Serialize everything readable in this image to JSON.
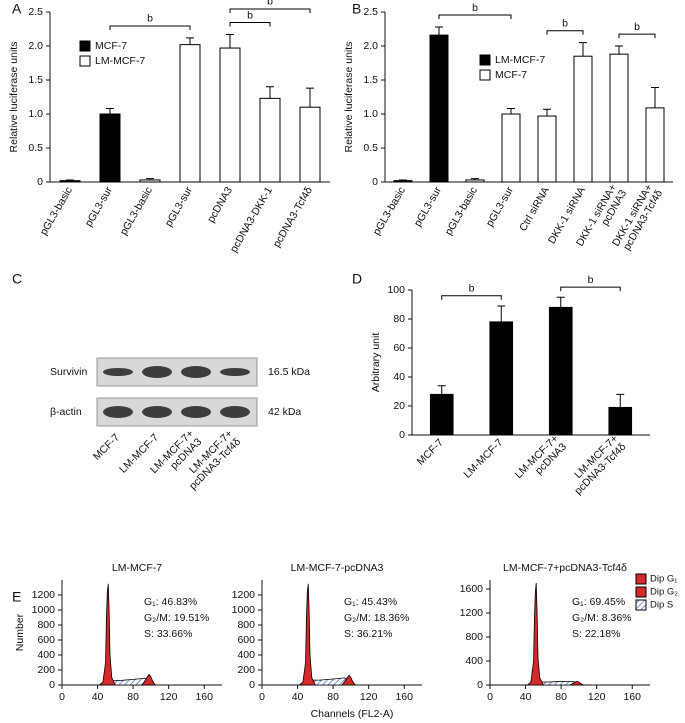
{
  "chart_data": [
    {
      "type": "bar",
      "label": "A",
      "ylabel": "Relative luciferase units",
      "categories": [
        "pGL3-basic",
        "pGL3-sur",
        "pGL3-basic",
        "pGL3-sur",
        "pcDNA3",
        "pcDNA3-DKK-1",
        "pcDNA3-Tcf4δ"
      ],
      "series": [
        {
          "name": "MCF-7",
          "color": "#000000",
          "values": [
            0.02,
            1.0,
            null,
            null,
            null,
            null,
            null
          ],
          "errors": [
            0.01,
            0.08,
            null,
            null,
            null,
            null,
            null
          ]
        },
        {
          "name": "LM-MCF-7",
          "color": "#ffffff",
          "values": [
            null,
            null,
            0.03,
            2.02,
            1.97,
            1.23,
            1.1
          ],
          "errors": [
            null,
            null,
            0.02,
            0.1,
            0.2,
            0.17,
            0.28
          ]
        }
      ],
      "ylim": [
        0,
        2.5
      ],
      "yticks": [
        0,
        0.5,
        {
          "value": 1,
          "label": "1.0"
        },
        1.5,
        {
          "value": 2,
          "label": "2.0"
        },
        2.5
      ],
      "legend": "upper left",
      "brackets": [
        {
          "from": 1,
          "to": 3,
          "label": "b"
        },
        {
          "from": 4,
          "to": 5,
          "label": "b"
        },
        {
          "from": 4,
          "to": 6,
          "label": "b"
        }
      ]
    },
    {
      "type": "bar",
      "label": "B",
      "ylabel": "Relative luciferase units",
      "categories": [
        "pGL3-basic",
        "pGL3-sur",
        "pGL3-basic",
        "pGL3-sur",
        "Ctrl siRNA",
        "DKK-1 siRNA",
        "DKK-1 siRNA+\npcDNA3",
        "DKK-1 siRNA+\npcDNA3-Tcf4δ"
      ],
      "series": [
        {
          "name": "LM-MCF-7",
          "color": "#000000",
          "values": [
            0.02,
            2.16,
            null,
            null,
            null,
            null,
            null,
            null
          ],
          "errors": [
            0.01,
            0.12,
            null,
            null,
            null,
            null,
            null,
            null
          ]
        },
        {
          "name": "MCF-7",
          "color": "#ffffff",
          "values": [
            null,
            null,
            0.03,
            1.0,
            0.97,
            1.85,
            1.88,
            1.09
          ],
          "errors": [
            null,
            null,
            0.02,
            0.08,
            0.1,
            0.2,
            0.12,
            0.3
          ]
        }
      ],
      "ylim": [
        0,
        2.5
      ],
      "yticks": [
        0,
        0.5,
        {
          "value": 1,
          "label": "1.0"
        },
        1.5,
        {
          "value": 2,
          "label": "2.0"
        },
        2.5
      ],
      "legend": "upper center",
      "brackets": [
        {
          "from": 1,
          "to": 3,
          "label": "b"
        },
        {
          "from": 4,
          "to": 5,
          "label": "b"
        },
        {
          "from": 6,
          "to": 7,
          "label": "b"
        }
      ]
    },
    {
      "type": "bar",
      "label": "D",
      "ylabel": "Arbitrary unit",
      "categories": [
        "MCF-7",
        "LM-MCF-7",
        "LM-MCF-7+\npcDNA3",
        "LM-MCF-7+\npcDNA3-Tcf4δ"
      ],
      "series": [
        {
          "color": "#000000",
          "values": [
            28,
            78,
            88,
            19
          ],
          "errors": [
            6,
            11,
            7,
            9
          ]
        }
      ],
      "ylim": [
        0,
        100
      ],
      "yticks": [
        0,
        20,
        40,
        60,
        80,
        100
      ],
      "brackets": [
        {
          "from": 0,
          "to": 1,
          "label": "b"
        },
        {
          "from": 2,
          "to": 3,
          "label": "b"
        }
      ]
    },
    {
      "type": "area",
      "title": "LM-MCF-7",
      "ylabel": "Number",
      "annotations": [
        "G₁: 46.83%",
        "G₂/M: 19.51%",
        "S: 33.66%"
      ],
      "xlim": [
        0,
        180
      ],
      "xticks": [
        0,
        40,
        80,
        120,
        160
      ],
      "ylim": [
        0,
        1400
      ],
      "yticks": [
        0,
        200,
        400,
        600,
        800,
        1000,
        1200
      ],
      "series": [
        {
          "color": "#d42a2a",
          "x": [
            42,
            46,
            49,
            50,
            51,
            52,
            53,
            54,
            56,
            60
          ],
          "values": [
            0,
            40,
            300,
            900,
            1250,
            1350,
            1000,
            400,
            100,
            0
          ]
        },
        {
          "color": "#d42a2a",
          "x": [
            90,
            93,
            96,
            98,
            100,
            102,
            105
          ],
          "values": [
            0,
            50,
            110,
            140,
            110,
            50,
            0
          ]
        },
        {
          "color": "hatch",
          "x": [
            53,
            58,
            65,
            75,
            85,
            93,
            98,
            103
          ],
          "values": [
            0,
            60,
            60,
            70,
            80,
            90,
            60,
            0
          ]
        }
      ]
    },
    {
      "type": "area",
      "title": "LM-MCF-7-pcDNA3",
      "annotations": [
        "G₁: 45.43%",
        "G₂/M: 18.36%",
        "S: 36.21%"
      ],
      "xlim": [
        0,
        180
      ],
      "xticks": [
        0,
        40,
        80,
        120,
        160
      ],
      "ylim": [
        0,
        1400
      ],
      "yticks": [
        0,
        200,
        400,
        600,
        800,
        1000,
        1200
      ],
      "series": [
        {
          "color": "#d42a2a",
          "x": [
            42,
            46,
            49,
            50,
            51,
            52,
            53,
            54,
            56,
            60
          ],
          "values": [
            0,
            40,
            300,
            900,
            1250,
            1350,
            1000,
            400,
            100,
            0
          ]
        },
        {
          "color": "#d42a2a",
          "x": [
            90,
            93,
            96,
            98,
            100,
            102,
            105
          ],
          "values": [
            0,
            45,
            100,
            130,
            100,
            45,
            0
          ]
        },
        {
          "color": "hatch",
          "x": [
            53,
            58,
            65,
            75,
            85,
            93,
            98,
            103
          ],
          "values": [
            0,
            65,
            65,
            75,
            85,
            95,
            60,
            0
          ]
        }
      ]
    },
    {
      "type": "area",
      "title": "LM-MCF-7+pcDNA3-Tcf4δ",
      "annotations": [
        "G₁: 69.45%",
        "G₂/M: 8.36%",
        "S: 22.18%"
      ],
      "xlim": [
        0,
        180
      ],
      "xticks": [
        0,
        40,
        80,
        120,
        160
      ],
      "ylim": [
        0,
        1750
      ],
      "yticks": [
        0,
        400,
        800,
        1200,
        1600
      ],
      "series": [
        {
          "color": "#d42a2a",
          "x": [
            42,
            46,
            49,
            50,
            51,
            52,
            53,
            54,
            56,
            60
          ],
          "values": [
            0,
            50,
            400,
            1100,
            1550,
            1700,
            1200,
            450,
            120,
            0
          ]
        },
        {
          "color": "#d42a2a",
          "x": [
            90,
            93,
            96,
            98,
            100,
            102,
            105
          ],
          "values": [
            0,
            25,
            50,
            60,
            50,
            25,
            0
          ]
        },
        {
          "color": "hatch",
          "x": [
            53,
            58,
            65,
            75,
            85,
            93,
            98,
            103
          ],
          "values": [
            0,
            50,
            50,
            55,
            60,
            60,
            40,
            0
          ]
        }
      ]
    }
  ],
  "blot": {
    "label": "C",
    "rows": [
      {
        "name": "Survivin",
        "size": "16.5 kDa"
      },
      {
        "name": "β-actin",
        "size": "42 kDa"
      }
    ],
    "lanes": [
      "MCF-7",
      "LM-MCF-7",
      "LM-MCF-7+\npcDNA3",
      "LM-MCF-7+\npcDNA3-Tcf4δ"
    ]
  },
  "panel_e": {
    "label": "E",
    "x_label": "Channels (FL2-A)",
    "legend": [
      {
        "name": "Dip G₁",
        "color": "#d42a2a"
      },
      {
        "name": "Dip G₂",
        "color": "#d42a2a"
      },
      {
        "name": "Dip S",
        "color": "hatch"
      }
    ]
  }
}
